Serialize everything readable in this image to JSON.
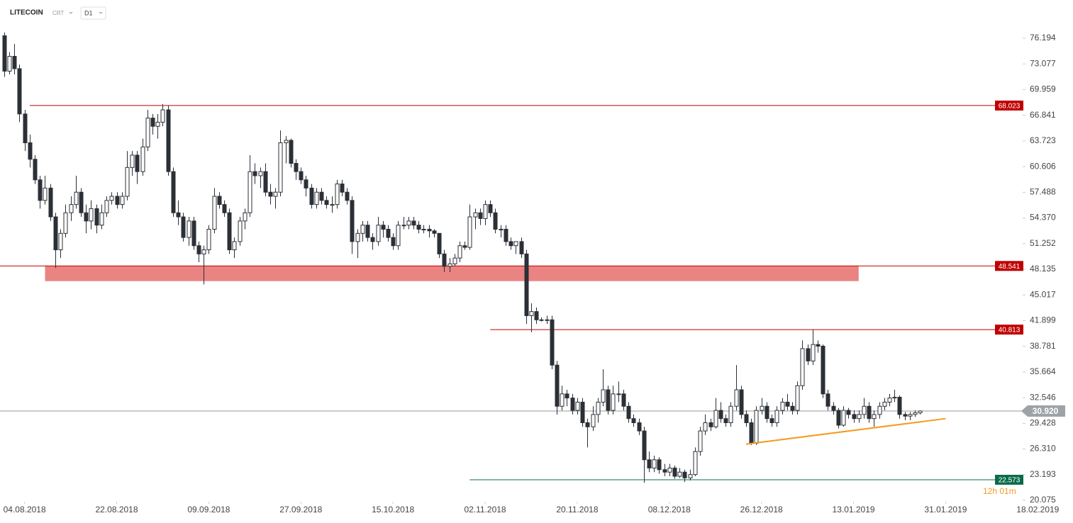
{
  "header": {
    "symbol": "LITECOIN",
    "source": "CRT",
    "timeframe": "D1"
  },
  "chart_data": {
    "type": "candlestick",
    "ylim": [
      20.075,
      80.842
    ],
    "yticks": [
      76.194,
      73.077,
      69.959,
      66.841,
      63.723,
      60.606,
      57.488,
      {
        "value": 54.37,
        "label": "54.370"
      },
      51.252,
      48.135,
      45.017,
      41.899,
      38.781,
      35.664,
      32.546,
      29.428,
      {
        "value": 26.31,
        "label": "26.310"
      },
      23.193,
      20.075
    ],
    "xlim": [
      -0.8,
      207.5
    ],
    "xticks": [
      {
        "value": 4,
        "label": "04.08.2018"
      },
      {
        "value": 22,
        "label": "22.08.2018"
      },
      {
        "value": 40,
        "label": "09.09.2018"
      },
      {
        "value": 58,
        "label": "27.09.2018"
      },
      {
        "value": 76,
        "label": "15.10.2018"
      },
      {
        "value": 94,
        "label": "02.11.2018"
      },
      {
        "value": 112,
        "label": "20.11.2018"
      },
      {
        "value": 130,
        "label": "08.12.2018"
      },
      {
        "value": 148,
        "label": "26.12.2018"
      },
      {
        "value": 166,
        "label": "13.01.2019"
      },
      {
        "value": 184,
        "label": "31.01.2019"
      },
      {
        "value": 202,
        "label": "18.02.2019"
      }
    ],
    "up_color": "#ffffff",
    "down_color": "#2b2f36",
    "ohlc": [
      [
        76.5,
        76.9,
        71.5,
        72.2
      ],
      [
        72.2,
        74.5,
        71.8,
        74.0
      ],
      [
        74.0,
        75.5,
        71.8,
        72.5
      ],
      [
        72.5,
        73.0,
        66.0,
        67.0
      ],
      [
        67.0,
        67.5,
        62.5,
        63.5
      ],
      [
        63.5,
        64.5,
        60.5,
        61.5
      ],
      [
        61.5,
        62.0,
        58.5,
        59.0
      ],
      [
        59.0,
        59.5,
        55.5,
        56.5
      ],
      [
        56.5,
        59.5,
        56.0,
        58.0
      ],
      [
        58.0,
        58.5,
        54.0,
        54.5
      ],
      [
        54.5,
        55.0,
        48.3,
        50.5
      ],
      [
        50.5,
        53.0,
        49.5,
        52.5
      ],
      [
        52.5,
        56.0,
        52.0,
        55.0
      ],
      [
        55.0,
        57.0,
        54.0,
        56.0
      ],
      [
        56.0,
        59.5,
        55.5,
        57.5
      ],
      [
        57.5,
        58.0,
        54.5,
        55.0
      ],
      [
        55.0,
        56.0,
        52.5,
        54.0
      ],
      [
        54.0,
        56.5,
        53.0,
        55.5
      ],
      [
        55.5,
        56.0,
        52.5,
        53.5
      ],
      [
        53.5,
        56.0,
        53.0,
        55.0
      ],
      [
        55.0,
        57.0,
        54.5,
        56.5
      ],
      [
        56.5,
        57.5,
        56.0,
        57.0
      ],
      [
        57.0,
        57.5,
        55.5,
        56.0
      ],
      [
        56.0,
        57.5,
        55.5,
        57.0
      ],
      [
        57.0,
        62.5,
        56.5,
        60.5
      ],
      [
        60.5,
        62.5,
        59.5,
        62.0
      ],
      [
        62.0,
        62.5,
        58.5,
        60.0
      ],
      [
        60.0,
        64.0,
        59.5,
        63.0
      ],
      [
        63.0,
        67.5,
        62.5,
        66.5
      ],
      [
        66.5,
        67.0,
        64.5,
        65.5
      ],
      [
        65.5,
        67.0,
        64.0,
        66.0
      ],
      [
        66.0,
        68.2,
        65.5,
        67.5
      ],
      [
        67.5,
        68.0,
        59.5,
        60.0
      ],
      [
        60.0,
        60.5,
        54.5,
        55.0
      ],
      [
        55.0,
        56.5,
        53.5,
        54.5
      ],
      [
        54.5,
        55.0,
        51.5,
        52.0
      ],
      [
        52.0,
        54.5,
        51.0,
        54.0
      ],
      [
        54.0,
        54.5,
        50.5,
        51.0
      ],
      [
        51.0,
        51.5,
        49.0,
        50.0
      ],
      [
        50.0,
        51.0,
        46.3,
        50.5
      ],
      [
        50.5,
        53.5,
        50.0,
        53.0
      ],
      [
        53.0,
        58.0,
        52.5,
        57.0
      ],
      [
        57.0,
        57.5,
        55.5,
        56.0
      ],
      [
        56.0,
        56.5,
        54.5,
        55.0
      ],
      [
        55.0,
        55.5,
        50.0,
        50.5
      ],
      [
        50.5,
        52.0,
        49.5,
        51.5
      ],
      [
        51.5,
        54.5,
        51.0,
        54.0
      ],
      [
        54.0,
        55.5,
        53.0,
        55.0
      ],
      [
        55.0,
        62.0,
        54.5,
        60.0
      ],
      [
        60.0,
        61.0,
        58.5,
        59.5
      ],
      [
        59.5,
        60.5,
        58.0,
        60.0
      ],
      [
        60.0,
        61.0,
        57.0,
        57.5
      ],
      [
        57.5,
        58.5,
        56.0,
        57.0
      ],
      [
        57.0,
        58.0,
        55.5,
        57.5
      ],
      [
        57.5,
        65.0,
        57.0,
        63.5
      ],
      [
        63.5,
        64.3,
        61.0,
        63.8
      ],
      [
        63.8,
        64.0,
        60.5,
        61.0
      ],
      [
        61.0,
        61.5,
        59.0,
        60.0
      ],
      [
        60.0,
        60.5,
        58.5,
        59.0
      ],
      [
        59.0,
        59.5,
        57.0,
        58.0
      ],
      [
        58.0,
        58.5,
        55.5,
        56.0
      ],
      [
        56.0,
        58.0,
        55.5,
        57.5
      ],
      [
        57.5,
        58.0,
        56.0,
        56.5
      ],
      [
        56.5,
        57.0,
        55.5,
        56.0
      ],
      [
        56.0,
        57.0,
        55.0,
        56.0
      ],
      [
        56.0,
        59.0,
        55.5,
        58.5
      ],
      [
        58.5,
        59.0,
        57.0,
        57.5
      ],
      [
        57.5,
        58.0,
        56.0,
        56.5
      ],
      [
        56.5,
        57.0,
        50.0,
        51.5
      ],
      [
        51.5,
        53.0,
        49.5,
        52.5
      ],
      [
        52.5,
        54.0,
        51.5,
        53.5
      ],
      [
        53.5,
        54.0,
        51.5,
        52.0
      ],
      [
        52.0,
        52.5,
        50.5,
        51.5
      ],
      [
        51.5,
        54.5,
        51.0,
        53.5
      ],
      [
        53.5,
        54.0,
        52.0,
        53.0
      ],
      [
        53.0,
        53.5,
        51.5,
        52.0
      ],
      [
        52.0,
        52.5,
        50.5,
        51.0
      ],
      [
        51.0,
        54.0,
        50.5,
        53.5
      ],
      [
        53.5,
        54.5,
        53.0,
        53.5
      ],
      [
        53.5,
        54.5,
        53.0,
        54.0
      ],
      [
        54.0,
        54.5,
        53.0,
        53.5
      ],
      [
        53.5,
        54.0,
        52.5,
        53.0
      ],
      [
        53.0,
        53.5,
        52.5,
        53.0
      ],
      [
        53.0,
        53.5,
        52.0,
        52.8
      ],
      [
        52.8,
        53.0,
        52.0,
        52.5
      ],
      [
        52.5,
        52.5,
        49.5,
        50.0
      ],
      [
        50.0,
        50.5,
        47.8,
        48.5
      ],
      [
        48.5,
        49.5,
        47.8,
        48.8
      ],
      [
        48.8,
        50.0,
        48.5,
        49.5
      ],
      [
        49.5,
        51.5,
        49.0,
        51.0
      ],
      [
        51.0,
        51.5,
        50.5,
        50.8
      ],
      [
        50.8,
        56.0,
        50.5,
        54.5
      ],
      [
        54.5,
        55.5,
        53.0,
        55.0
      ],
      [
        55.0,
        55.5,
        53.5,
        54.3
      ],
      [
        54.3,
        56.5,
        53.5,
        56.0
      ],
      [
        56.0,
        56.5,
        54.5,
        55.0
      ],
      [
        55.0,
        55.5,
        52.5,
        53.0
      ],
      [
        53.0,
        53.5,
        52.0,
        53.0
      ],
      [
        53.0,
        53.5,
        51.0,
        51.5
      ],
      [
        51.5,
        52.0,
        50.5,
        51.0
      ],
      [
        51.0,
        51.5,
        50.0,
        51.5
      ],
      [
        51.5,
        52.0,
        49.5,
        50.0
      ],
      [
        50.0,
        50.5,
        41.5,
        42.5
      ],
      [
        42.5,
        44.0,
        40.5,
        43.0
      ],
      [
        43.0,
        43.5,
        41.5,
        42.0
      ],
      [
        42.0,
        42.3,
        41.8,
        42.0
      ],
      [
        42.0,
        42.5,
        41.5,
        42.0
      ],
      [
        42.0,
        42.5,
        36.0,
        36.5
      ],
      [
        36.5,
        37.0,
        30.5,
        31.5
      ],
      [
        31.5,
        34.0,
        31.0,
        33.0
      ],
      [
        33.0,
        33.5,
        31.5,
        32.5
      ],
      [
        32.5,
        33.0,
        30.5,
        31.0
      ],
      [
        31.0,
        32.5,
        30.5,
        32.0
      ],
      [
        32.0,
        32.5,
        29.0,
        29.5
      ],
      [
        29.5,
        30.0,
        26.5,
        29.0
      ],
      [
        29.0,
        31.5,
        28.5,
        30.5
      ],
      [
        30.5,
        32.5,
        29.5,
        32.0
      ],
      [
        32.0,
        36.0,
        31.5,
        33.5
      ],
      [
        33.5,
        34.0,
        30.5,
        31.0
      ],
      [
        31.0,
        34.0,
        30.5,
        33.0
      ],
      [
        33.0,
        34.5,
        32.0,
        33.0
      ],
      [
        33.0,
        33.5,
        31.0,
        31.5
      ],
      [
        31.5,
        32.0,
        29.5,
        30.0
      ],
      [
        30.0,
        30.5,
        29.0,
        29.5
      ],
      [
        29.5,
        30.0,
        28.0,
        28.5
      ],
      [
        28.5,
        29.0,
        22.2,
        25.0
      ],
      [
        25.0,
        26.0,
        23.5,
        24.0
      ],
      [
        24.0,
        25.5,
        23.5,
        25.0
      ],
      [
        25.0,
        25.3,
        23.3,
        23.8
      ],
      [
        23.8,
        24.5,
        23.0,
        23.5
      ],
      [
        23.5,
        24.5,
        23.0,
        24.0
      ],
      [
        24.0,
        24.3,
        22.7,
        23.0
      ],
      [
        23.0,
        24.0,
        22.8,
        23.5
      ],
      [
        23.5,
        23.8,
        22.3,
        22.8
      ],
      [
        22.8,
        23.8,
        22.5,
        23.2
      ],
      [
        23.2,
        26.5,
        23.0,
        26.0
      ],
      [
        26.0,
        29.0,
        25.5,
        28.5
      ],
      [
        28.5,
        30.5,
        28.0,
        29.5
      ],
      [
        29.5,
        30.0,
        28.5,
        29.0
      ],
      [
        29.0,
        32.5,
        28.8,
        31.0
      ],
      [
        31.0,
        32.0,
        29.5,
        30.0
      ],
      [
        30.0,
        30.5,
        29.0,
        29.5
      ],
      [
        29.5,
        32.0,
        29.0,
        31.5
      ],
      [
        31.5,
        36.5,
        31.0,
        33.5
      ],
      [
        33.5,
        34.0,
        30.0,
        30.5
      ],
      [
        30.5,
        31.0,
        29.0,
        29.5
      ],
      [
        29.5,
        30.0,
        26.8,
        27.0
      ],
      [
        27.0,
        31.5,
        26.8,
        31.0
      ],
      [
        31.0,
        32.5,
        30.5,
        31.5
      ],
      [
        31.5,
        32.0,
        29.5,
        30.0
      ],
      [
        30.0,
        30.5,
        29.0,
        29.5
      ],
      [
        29.5,
        31.5,
        29.0,
        31.0
      ],
      [
        31.0,
        32.5,
        30.5,
        32.0
      ],
      [
        32.0,
        33.0,
        31.0,
        31.5
      ],
      [
        31.5,
        32.0,
        30.5,
        31.0
      ],
      [
        31.0,
        34.5,
        30.5,
        34.0
      ],
      [
        34.0,
        39.5,
        33.5,
        38.5
      ],
      [
        38.5,
        39.0,
        36.5,
        37.0
      ],
      [
        37.0,
        40.8,
        36.5,
        39.0
      ],
      [
        39.0,
        39.5,
        38.0,
        38.8
      ],
      [
        38.8,
        39.0,
        32.5,
        33.0
      ],
      [
        33.0,
        33.5,
        31.0,
        31.5
      ],
      [
        31.5,
        32.0,
        30.5,
        31.0
      ],
      [
        31.0,
        31.3,
        28.8,
        29.2
      ],
      [
        29.2,
        31.5,
        29.0,
        31.0
      ],
      [
        31.0,
        31.3,
        30.0,
        30.5
      ],
      [
        30.5,
        31.0,
        29.5,
        30.0
      ],
      [
        30.0,
        31.0,
        29.5,
        30.5
      ],
      [
        30.5,
        32.5,
        30.0,
        31.5
      ],
      [
        31.5,
        32.0,
        29.5,
        30.0
      ],
      [
        30.0,
        31.0,
        29.0,
        30.5
      ],
      [
        30.5,
        32.0,
        30.0,
        31.5
      ],
      [
        31.5,
        32.5,
        31.0,
        32.0
      ],
      [
        32.0,
        33.0,
        31.5,
        32.5
      ],
      [
        32.5,
        33.5,
        32.0,
        32.6
      ],
      [
        32.6,
        32.8,
        30.0,
        30.5
      ],
      [
        30.5,
        30.8,
        29.8,
        30.3
      ],
      [
        30.3,
        30.8,
        29.8,
        30.5
      ],
      [
        30.5,
        31.0,
        30.2,
        30.7
      ],
      [
        30.7,
        31.0,
        30.5,
        30.92
      ]
    ],
    "levels": [
      {
        "value": 68.023,
        "color": "#c00000",
        "from": 5
      },
      {
        "value": 48.541,
        "color": "#c00000",
        "from": -0.8
      },
      {
        "value": 40.813,
        "color": "#c00000",
        "from": 95
      },
      {
        "value": 22.573,
        "color": "#0a6b4a",
        "from": 91
      }
    ],
    "zone": {
      "low": 46.7,
      "high": 48.541,
      "from": 8,
      "to": 167,
      "color": "#e98483"
    },
    "trendline": {
      "from": [
        145,
        26.9
      ],
      "to": [
        184,
        30.0
      ],
      "color": "#f39c1f"
    },
    "current_price": {
      "value": 30.92,
      "label": "30.920",
      "color": "#9ea3a8"
    },
    "countdown": "12h 01m"
  }
}
